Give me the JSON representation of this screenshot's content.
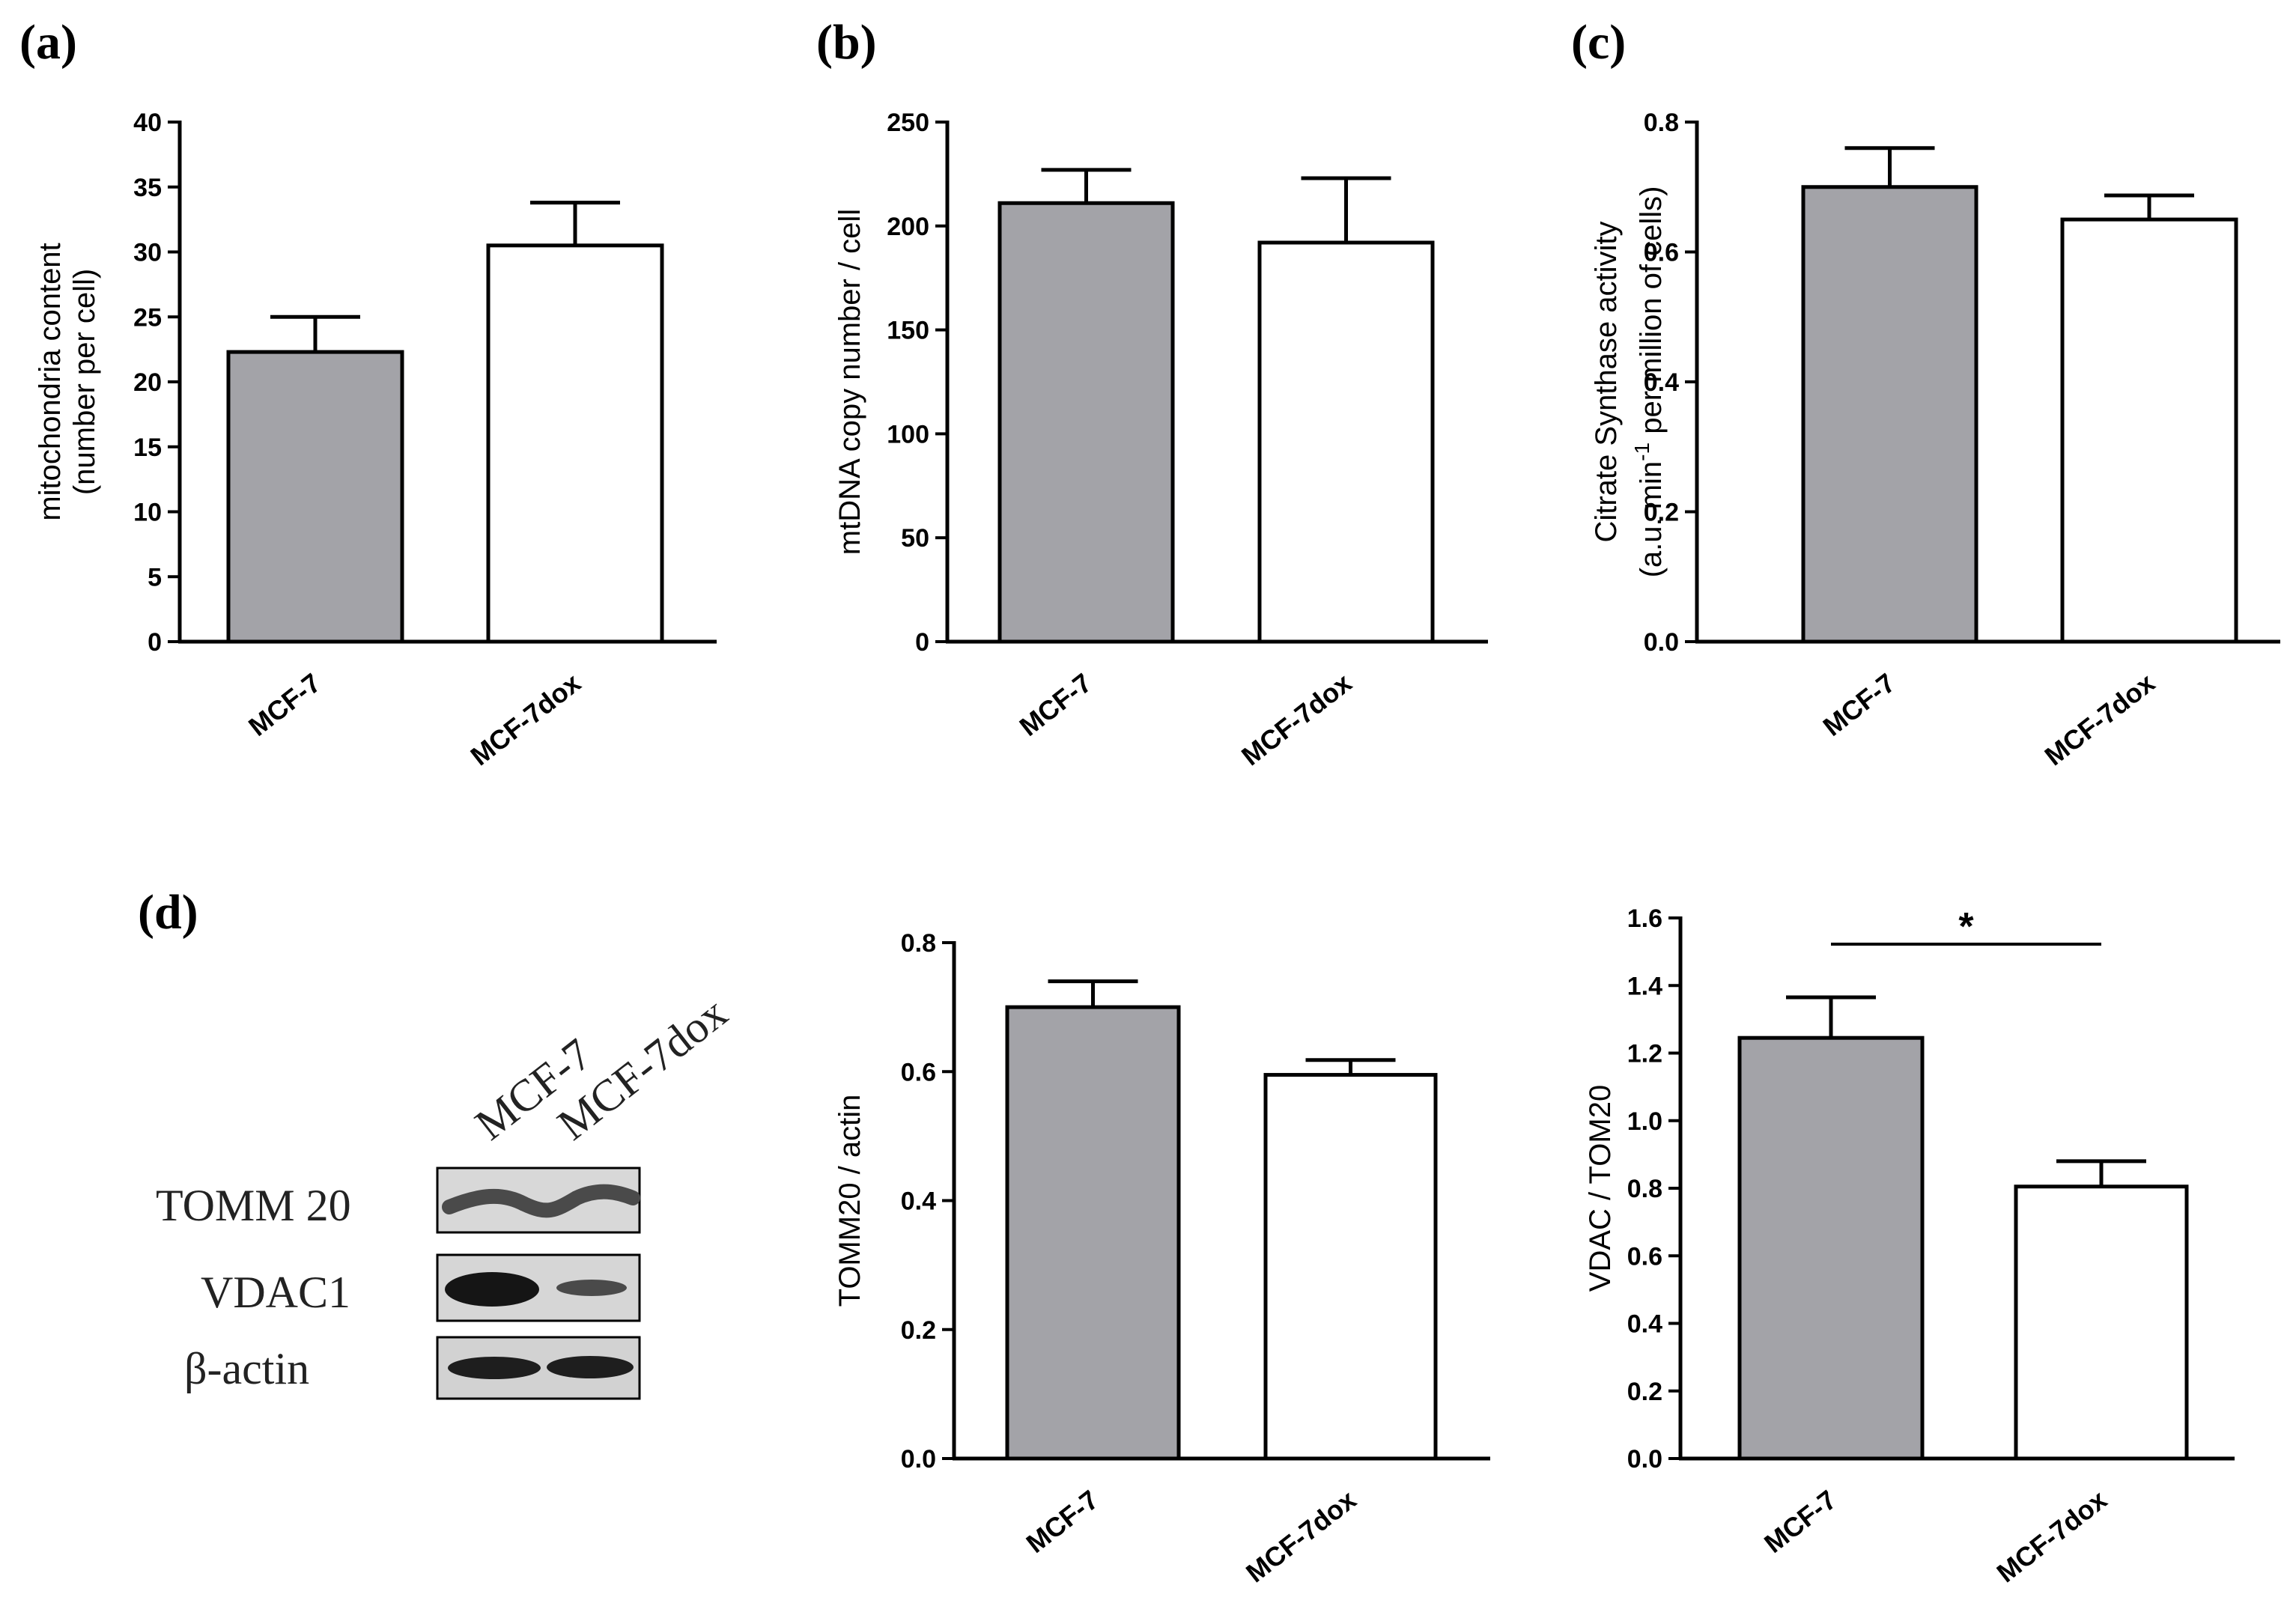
{
  "panel_labels": [
    "(a)",
    "(b)",
    "(c)",
    "(d)"
  ],
  "colors": {
    "mcf7_bar": "#a3a3a8",
    "mcf7dox_bar": "#ffffff",
    "stroke": "#000000"
  },
  "blot": {
    "lane_labels": [
      "MCF-7",
      "MCF-7dox"
    ],
    "row_labels": [
      "TOMM 20",
      "VDAC1",
      "β-actin"
    ]
  },
  "chart_data": [
    {
      "type": "bar",
      "panel": "(a)",
      "title": "",
      "categories": [
        "MCF-7",
        "MCF-7dox"
      ],
      "values": [
        22.3,
        30.5
      ],
      "errors": [
        2.7,
        3.3
      ],
      "ylabel_lines": [
        "mitochondria content",
        "(number per cell)"
      ],
      "ylim": [
        0,
        40
      ],
      "yticks": [
        0,
        5,
        10,
        15,
        20,
        25,
        30,
        35,
        40
      ],
      "ytick_labels": [
        "0",
        "5",
        "10",
        "15",
        "20",
        "25",
        "30",
        "35",
        "40"
      ]
    },
    {
      "type": "bar",
      "panel": "(b)",
      "title": "",
      "categories": [
        "MCF-7",
        "MCF-7dox"
      ],
      "values": [
        211,
        192
      ],
      "errors": [
        16,
        31
      ],
      "ylabel_lines": [
        "mtDNA copy number / cell"
      ],
      "ylim": [
        0,
        250
      ],
      "yticks": [
        0,
        50,
        100,
        150,
        200,
        250
      ],
      "ytick_labels": [
        "0",
        "50",
        "100",
        "150",
        "200",
        "250"
      ]
    },
    {
      "type": "bar",
      "panel": "(c)",
      "title": "",
      "categories": [
        "MCF-7",
        "MCF-7dox"
      ],
      "values": [
        0.7,
        0.65
      ],
      "errors": [
        0.06,
        0.037
      ],
      "ylabel_lines": [
        "Citrate Synthase activity",
        "(a.u. min",
        "-1",
        " per million of cells)"
      ],
      "ylim": [
        0,
        0.8
      ],
      "yticks": [
        0,
        0.2,
        0.4,
        0.6,
        0.8
      ],
      "ytick_labels": [
        "0.0",
        "0.2",
        "0.4",
        "0.6",
        "0.8"
      ]
    },
    {
      "type": "bar",
      "panel": "(d) TOMM20",
      "title": "",
      "categories": [
        "MCF-7",
        "MCF-7dox"
      ],
      "values": [
        0.7,
        0.595
      ],
      "errors": [
        0.04,
        0.023
      ],
      "ylabel_lines": [
        "TOMM20 / actin"
      ],
      "ylim": [
        0,
        0.8
      ],
      "yticks": [
        0,
        0.2,
        0.4,
        0.6,
        0.8
      ],
      "ytick_labels": [
        "0.0",
        "0.2",
        "0.4",
        "0.6",
        "0.8"
      ]
    },
    {
      "type": "bar",
      "panel": "(d) VDAC",
      "title": "",
      "categories": [
        "MCF-7",
        "MCF-7dox"
      ],
      "values": [
        1.245,
        0.805
      ],
      "errors": [
        0.12,
        0.075
      ],
      "ylabel_lines": [
        "VDAC / TOM20"
      ],
      "ylim": [
        0,
        1.6
      ],
      "yticks": [
        0,
        0.2,
        0.4,
        0.6,
        0.8,
        1.0,
        1.2,
        1.4,
        1.6
      ],
      "ytick_labels": [
        "0.0",
        "0.2",
        "0.4",
        "0.6",
        "0.8",
        "1.0",
        "1.2",
        "1.4",
        "1.6"
      ],
      "significance": "*"
    }
  ]
}
